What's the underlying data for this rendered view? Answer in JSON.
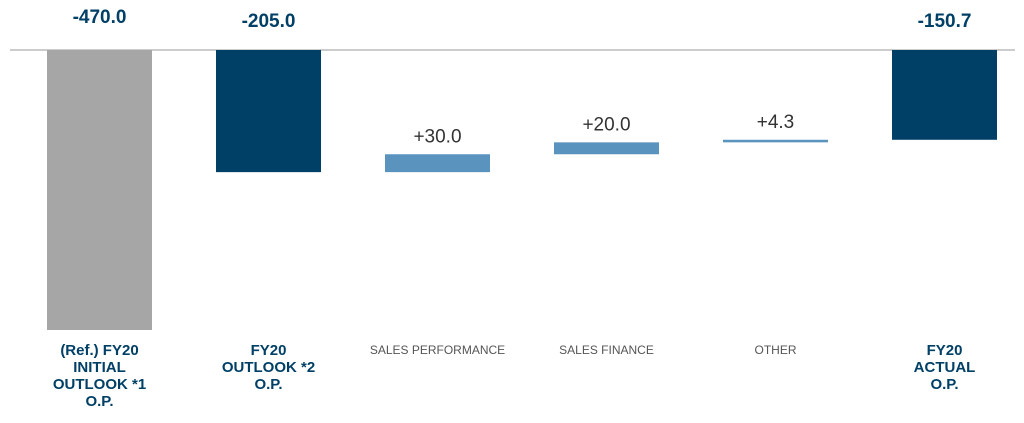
{
  "chart_data": {
    "type": "waterfall",
    "categories": [
      "(Ref.) FY20\nINITIAL\nOUTLOOK *1\nO.P.",
      "FY20\nOUTLOOK *2\nO.P.",
      "SALES PERFORMANCE",
      "SALES FINANCE",
      "OTHER",
      "FY20\nACTUAL\nO.P."
    ],
    "values": [
      -470,
      -205,
      30,
      20,
      4.3,
      -150.7
    ],
    "value_labels": [
      "-470.0",
      "-205.0",
      "+30.0",
      "+20.0",
      "+4.3",
      "-150.7"
    ],
    "totals": [
      true,
      true,
      false,
      false,
      false,
      true
    ],
    "colors": [
      "#a6a6a6",
      "#003f66",
      "#5b93bf",
      "#5b93bf",
      "#5b93bf",
      "#003f66"
    ]
  }
}
